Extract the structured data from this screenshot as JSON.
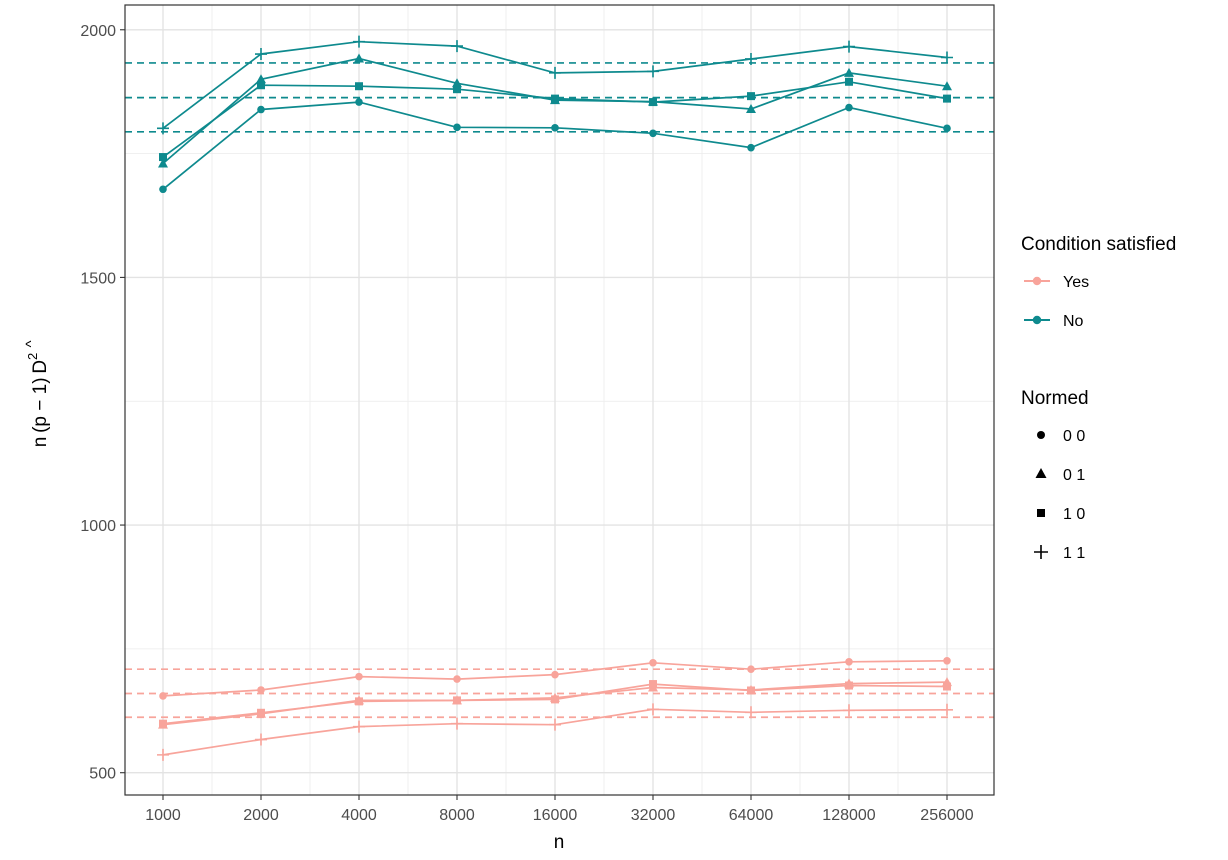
{
  "chart_data": {
    "type": "line",
    "title": "",
    "xlabel": "n",
    "ylabel": "n (p − 1) D̂²",
    "ylabel_parts": {
      "main": "n (p − 1) ",
      "d": "D",
      "hat": "^",
      "sup": "2"
    },
    "x_scale": "log2",
    "x": [
      1000,
      2000,
      4000,
      8000,
      16000,
      32000,
      64000,
      128000,
      256000
    ],
    "x_tick_labels": [
      "1000",
      "2000",
      "4000",
      "8000",
      "16000",
      "32000",
      "64000",
      "128000",
      "256000"
    ],
    "y_ticks": [
      500,
      1000,
      1500,
      2000
    ],
    "y_tick_labels": [
      "500",
      "1000",
      "1500",
      "2000"
    ],
    "ylim": [
      455,
      2050
    ],
    "grid": true,
    "legend_placement": "right",
    "colors": {
      "Yes": "#F8A49B",
      "No": "#0E8A8E"
    },
    "legends": {
      "color": {
        "title": "Condition satisfied",
        "items": [
          "Yes",
          "No"
        ]
      },
      "shape": {
        "title": "Normed",
        "items": [
          {
            "label": "0 0",
            "shape": "circle"
          },
          {
            "label": "0 1",
            "shape": "triangle"
          },
          {
            "label": "1 0",
            "shape": "square"
          },
          {
            "label": "1 1",
            "shape": "plus"
          }
        ]
      }
    },
    "reference_lines": [
      {
        "group": "No",
        "y": 1933
      },
      {
        "group": "No",
        "y": 1863
      },
      {
        "group": "No",
        "y": 1794
      },
      {
        "group": "Yes",
        "y": 709
      },
      {
        "group": "Yes",
        "y": 660
      },
      {
        "group": "Yes",
        "y": 612
      }
    ],
    "series": [
      {
        "condition": "No",
        "normed": "0 0",
        "shape": "circle",
        "values": [
          1678,
          1839,
          1854,
          1803,
          1802,
          1791,
          1762,
          1843,
          1801
        ]
      },
      {
        "condition": "No",
        "normed": "0 1",
        "shape": "triangle",
        "values": [
          1730,
          1900,
          1942,
          1892,
          1858,
          1855,
          1840,
          1913,
          1886
        ]
      },
      {
        "condition": "No",
        "normed": "1 0",
        "shape": "square",
        "values": [
          1743,
          1888,
          1886,
          1880,
          1861,
          1854,
          1866,
          1895,
          1861
        ]
      },
      {
        "condition": "No",
        "normed": "1 1",
        "shape": "plus",
        "values": [
          1801,
          1951,
          1976,
          1967,
          1913,
          1916,
          1941,
          1966,
          1944
        ]
      },
      {
        "condition": "Yes",
        "normed": "0 0",
        "shape": "circle",
        "values": [
          655,
          667,
          694,
          689,
          698,
          722,
          709,
          724,
          726
        ]
      },
      {
        "condition": "Yes",
        "normed": "0 1",
        "shape": "triangle",
        "values": [
          597,
          619,
          646,
          646,
          651,
          672,
          667,
          680,
          683
        ]
      },
      {
        "condition": "Yes",
        "normed": "1 0",
        "shape": "square",
        "values": [
          599,
          621,
          644,
          646,
          648,
          679,
          666,
          676,
          674
        ]
      },
      {
        "condition": "Yes",
        "normed": "1 1",
        "shape": "plus",
        "values": [
          536,
          567,
          593,
          599,
          597,
          628,
          622,
          626,
          627
        ]
      }
    ]
  }
}
